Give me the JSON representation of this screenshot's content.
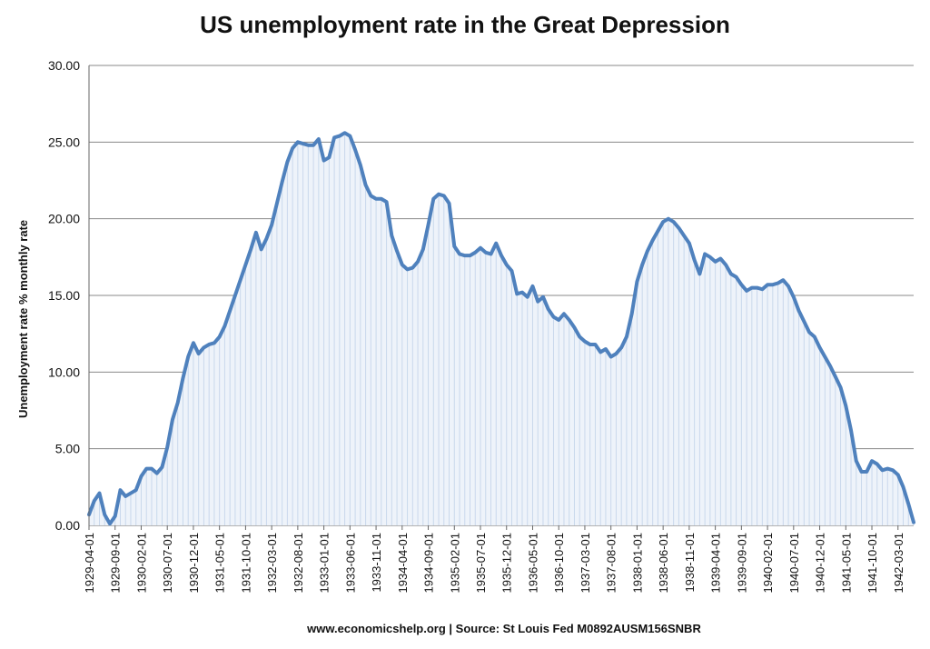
{
  "chart_data": {
    "type": "area",
    "title": "US unemployment rate in the Great Depression",
    "ylabel": "Unemployment rate % monthly rate",
    "xlabel": "",
    "source": "www.economicshelp.org | Source: St Louis Fed M0892AUSM156SNBR",
    "ylim": [
      0,
      30
    ],
    "yticks": [
      "0.00",
      "5.00",
      "10.00",
      "15.00",
      "20.00",
      "25.00",
      "30.00"
    ],
    "grid": true,
    "x_start": "1929-04",
    "x_end": "1942-06",
    "xticks": [
      "1929-04-01",
      "1929-09-01",
      "1930-02-01",
      "1930-07-01",
      "1930-12-01",
      "1931-05-01",
      "1931-10-01",
      "1932-03-01",
      "1932-08-01",
      "1933-01-01",
      "1933-06-01",
      "1933-11-01",
      "1934-04-01",
      "1934-09-01",
      "1935-02-01",
      "1935-07-01",
      "1935-12-01",
      "1936-05-01",
      "1936-10-01",
      "1937-03-01",
      "1937-08-01",
      "1938-01-01",
      "1938-06-01",
      "1938-11-01",
      "1939-04-01",
      "1939-09-01",
      "1940-02-01",
      "1940-07-01",
      "1940-12-01",
      "1941-05-01",
      "1941-10-01",
      "1942-03-01"
    ],
    "series": [
      {
        "color": "#4f81bd",
        "points": [
          [
            "1929-04",
            0.7
          ],
          [
            "1929-05",
            1.6
          ],
          [
            "1929-06",
            2.1
          ],
          [
            "1929-07",
            0.7
          ],
          [
            "1929-08",
            0.1
          ],
          [
            "1929-09",
            0.6
          ],
          [
            "1929-10",
            2.3
          ],
          [
            "1929-11",
            1.9
          ],
          [
            "1929-12",
            2.1
          ],
          [
            "1930-01",
            2.3
          ],
          [
            "1930-02",
            3.2
          ],
          [
            "1930-03",
            3.7
          ],
          [
            "1930-04",
            3.7
          ],
          [
            "1930-05",
            3.4
          ],
          [
            "1930-06",
            3.8
          ],
          [
            "1930-07",
            5.1
          ],
          [
            "1930-08",
            6.9
          ],
          [
            "1930-09",
            8.0
          ],
          [
            "1930-10",
            9.6
          ],
          [
            "1930-11",
            11.0
          ],
          [
            "1930-12",
            11.9
          ],
          [
            "1931-01",
            11.2
          ],
          [
            "1931-02",
            11.6
          ],
          [
            "1931-03",
            11.8
          ],
          [
            "1931-04",
            11.9
          ],
          [
            "1931-05",
            12.3
          ],
          [
            "1931-06",
            13.0
          ],
          [
            "1931-07",
            14.0
          ],
          [
            "1931-08",
            15.0
          ],
          [
            "1931-09",
            16.0
          ],
          [
            "1931-10",
            17.0
          ],
          [
            "1931-11",
            18.0
          ],
          [
            "1931-12",
            19.1
          ],
          [
            "1932-01",
            18.0
          ],
          [
            "1932-02",
            18.7
          ],
          [
            "1932-03",
            19.6
          ],
          [
            "1932-04",
            21.0
          ],
          [
            "1932-05",
            22.4
          ],
          [
            "1932-06",
            23.7
          ],
          [
            "1932-07",
            24.6
          ],
          [
            "1932-08",
            25.0
          ],
          [
            "1932-09",
            24.9
          ],
          [
            "1932-10",
            24.8
          ],
          [
            "1932-11",
            24.8
          ],
          [
            "1932-12",
            25.2
          ],
          [
            "1933-01",
            23.8
          ],
          [
            "1933-02",
            24.0
          ],
          [
            "1933-03",
            25.3
          ],
          [
            "1933-04",
            25.4
          ],
          [
            "1933-05",
            25.6
          ],
          [
            "1933-06",
            25.4
          ],
          [
            "1933-07",
            24.5
          ],
          [
            "1933-08",
            23.5
          ],
          [
            "1933-09",
            22.2
          ],
          [
            "1933-10",
            21.5
          ],
          [
            "1933-11",
            21.3
          ],
          [
            "1933-12",
            21.3
          ],
          [
            "1934-01",
            21.1
          ],
          [
            "1934-02",
            18.9
          ],
          [
            "1934-03",
            17.9
          ],
          [
            "1934-04",
            17.0
          ],
          [
            "1934-05",
            16.7
          ],
          [
            "1934-06",
            16.8
          ],
          [
            "1934-07",
            17.2
          ],
          [
            "1934-08",
            18.0
          ],
          [
            "1934-09",
            19.6
          ],
          [
            "1934-10",
            21.3
          ],
          [
            "1934-11",
            21.6
          ],
          [
            "1934-12",
            21.5
          ],
          [
            "1935-01",
            21.0
          ],
          [
            "1935-02",
            18.2
          ],
          [
            "1935-03",
            17.7
          ],
          [
            "1935-04",
            17.6
          ],
          [
            "1935-05",
            17.6
          ],
          [
            "1935-06",
            17.8
          ],
          [
            "1935-07",
            18.1
          ],
          [
            "1935-08",
            17.8
          ],
          [
            "1935-09",
            17.7
          ],
          [
            "1935-10",
            18.4
          ],
          [
            "1935-11",
            17.6
          ],
          [
            "1935-12",
            17.0
          ],
          [
            "1936-01",
            16.6
          ],
          [
            "1936-02",
            15.1
          ],
          [
            "1936-03",
            15.2
          ],
          [
            "1936-04",
            14.9
          ],
          [
            "1936-05",
            15.6
          ],
          [
            "1936-06",
            14.6
          ],
          [
            "1936-07",
            14.9
          ],
          [
            "1936-08",
            14.1
          ],
          [
            "1936-09",
            13.6
          ],
          [
            "1936-10",
            13.4
          ],
          [
            "1936-11",
            13.8
          ],
          [
            "1936-12",
            13.4
          ],
          [
            "1937-01",
            12.9
          ],
          [
            "1937-02",
            12.3
          ],
          [
            "1937-03",
            12.0
          ],
          [
            "1937-04",
            11.8
          ],
          [
            "1937-05",
            11.8
          ],
          [
            "1937-06",
            11.3
          ],
          [
            "1937-07",
            11.5
          ],
          [
            "1937-08",
            11.0
          ],
          [
            "1937-09",
            11.2
          ],
          [
            "1937-10",
            11.6
          ],
          [
            "1937-11",
            12.3
          ],
          [
            "1937-12",
            13.8
          ],
          [
            "1938-01",
            15.9
          ],
          [
            "1938-02",
            17.0
          ],
          [
            "1938-03",
            17.9
          ],
          [
            "1938-04",
            18.6
          ],
          [
            "1938-05",
            19.2
          ],
          [
            "1938-06",
            19.8
          ],
          [
            "1938-07",
            20.0
          ],
          [
            "1938-08",
            19.8
          ],
          [
            "1938-09",
            19.4
          ],
          [
            "1938-10",
            18.9
          ],
          [
            "1938-11",
            18.4
          ],
          [
            "1938-12",
            17.3
          ],
          [
            "1939-01",
            16.4
          ],
          [
            "1939-02",
            17.7
          ],
          [
            "1939-03",
            17.5
          ],
          [
            "1939-04",
            17.2
          ],
          [
            "1939-05",
            17.4
          ],
          [
            "1939-06",
            17.0
          ],
          [
            "1939-07",
            16.4
          ],
          [
            "1939-08",
            16.2
          ],
          [
            "1939-09",
            15.7
          ],
          [
            "1939-10",
            15.3
          ],
          [
            "1939-11",
            15.5
          ],
          [
            "1939-12",
            15.5
          ],
          [
            "1940-01",
            15.4
          ],
          [
            "1940-02",
            15.7
          ],
          [
            "1940-03",
            15.7
          ],
          [
            "1940-04",
            15.8
          ],
          [
            "1940-05",
            16.0
          ],
          [
            "1940-06",
            15.6
          ],
          [
            "1940-07",
            14.9
          ],
          [
            "1940-08",
            14.0
          ],
          [
            "1940-09",
            13.3
          ],
          [
            "1940-10",
            12.6
          ],
          [
            "1940-11",
            12.3
          ],
          [
            "1940-12",
            11.6
          ],
          [
            "1941-01",
            11.0
          ],
          [
            "1941-02",
            10.4
          ],
          [
            "1941-03",
            9.7
          ],
          [
            "1941-04",
            9.0
          ],
          [
            "1941-05",
            7.8
          ],
          [
            "1941-06",
            6.2
          ],
          [
            "1941-07",
            4.2
          ],
          [
            "1941-08",
            3.5
          ],
          [
            "1941-09",
            3.5
          ],
          [
            "1941-10",
            4.2
          ],
          [
            "1941-11",
            4.0
          ],
          [
            "1941-12",
            3.6
          ],
          [
            "1942-01",
            3.7
          ],
          [
            "1942-02",
            3.6
          ],
          [
            "1942-03",
            3.3
          ],
          [
            "1942-04",
            2.5
          ],
          [
            "1942-05",
            1.4
          ],
          [
            "1942-06",
            0.2
          ]
        ]
      }
    ]
  }
}
